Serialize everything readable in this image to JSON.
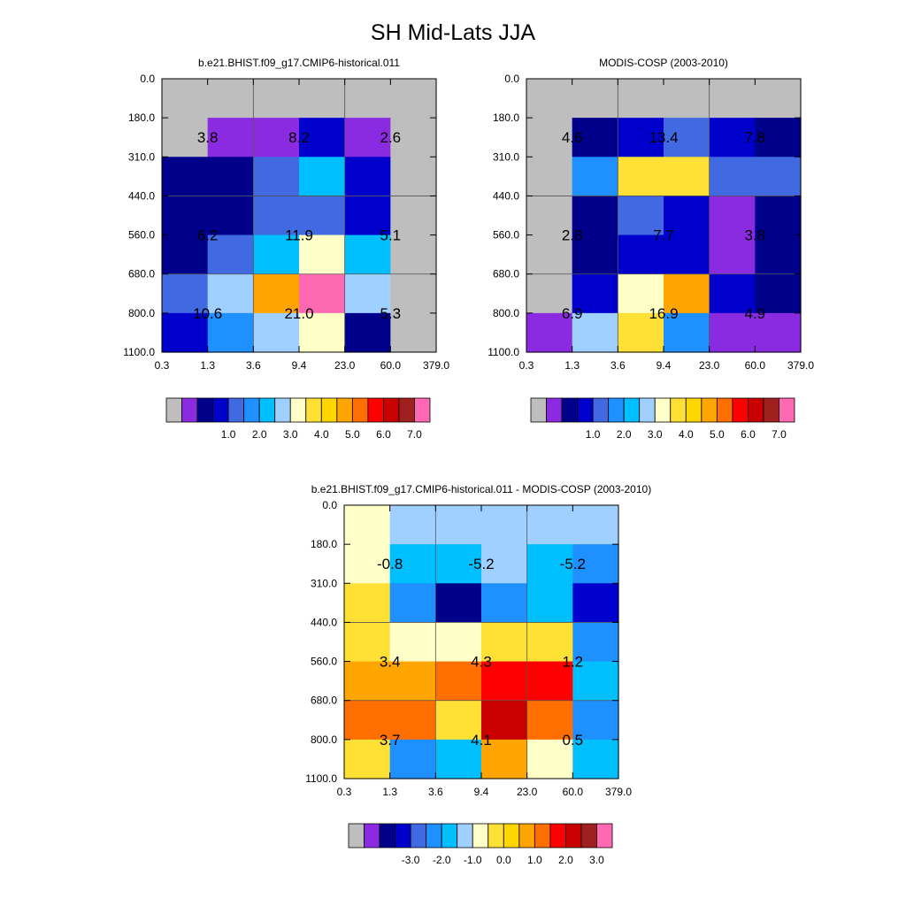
{
  "figure": {
    "title": "SH Mid-Lats JJA"
  },
  "palette_main": [
    "#BEBEBE",
    "#8A2BE2",
    "#00008B",
    "#0000CD",
    "#4169E1",
    "#1E90FF",
    "#00BFFF",
    "#A0D0FF",
    "#FFFFC8",
    "#FFE135",
    "#FFD700",
    "#FFA500",
    "#FF6E00",
    "#FF0000",
    "#C80000",
    "#A02020",
    "#FF69B4"
  ],
  "palette_diff": [
    "#BEBEBE",
    "#8A2BE2",
    "#00008B",
    "#0000CD",
    "#4169E1",
    "#1E90FF",
    "#00BFFF",
    "#A0D0FF",
    "#FFFFC8",
    "#FFE135",
    "#FFD700",
    "#FFA500",
    "#FF6E00",
    "#FF0000",
    "#C80000",
    "#A02020",
    "#FF69B4"
  ],
  "chart_data": [
    {
      "type": "heatmap",
      "title": "b.e21.BHIST.f09_g17.CMIP6-historical.011",
      "x_ticks": [
        "0.3",
        "1.3",
        "3.6",
        "9.4",
        "23.0",
        "60.0",
        "379.0"
      ],
      "y_ticks": [
        "0.0",
        "180.0",
        "310.0",
        "440.0",
        "560.0",
        "680.0",
        "800.0",
        "1100.0"
      ],
      "cells": [
        [
          0,
          0,
          0,
          0,
          0,
          0
        ],
        [
          0,
          1,
          1,
          3,
          1,
          0
        ],
        [
          2,
          2,
          4,
          6,
          3,
          0
        ],
        [
          2,
          2,
          4,
          4,
          3,
          0
        ],
        [
          2,
          4,
          6,
          8,
          6,
          0
        ],
        [
          4,
          7,
          11,
          16,
          7,
          0
        ],
        [
          3,
          5,
          7,
          8,
          2,
          0
        ]
      ],
      "labels": [
        {
          "text": "3.8",
          "col": 1,
          "row": 1.5
        },
        {
          "text": "8.2",
          "col": 3,
          "row": 1.5
        },
        {
          "text": "2.6",
          "col": 5,
          "row": 1.5
        },
        {
          "text": "6.2",
          "col": 1,
          "row": 4
        },
        {
          "text": "11.9",
          "col": 3,
          "row": 4
        },
        {
          "text": "5.1",
          "col": 5,
          "row": 4
        },
        {
          "text": "10.6",
          "col": 1,
          "row": 6
        },
        {
          "text": "21.0",
          "col": 3,
          "row": 6
        },
        {
          "text": "5.3",
          "col": 5,
          "row": 6
        }
      ],
      "colorbar_labels": [
        "1.0",
        "2.0",
        "3.0",
        "4.0",
        "5.0",
        "6.0",
        "7.0"
      ]
    },
    {
      "type": "heatmap",
      "title": "MODIS-COSP (2003-2010)",
      "x_ticks": [
        "0.3",
        "1.3",
        "3.6",
        "9.4",
        "23.0",
        "60.0",
        "379.0"
      ],
      "y_ticks": [
        "0.0",
        "180.0",
        "310.0",
        "440.0",
        "560.0",
        "680.0",
        "800.0",
        "1100.0"
      ],
      "cells": [
        [
          0,
          0,
          0,
          0,
          0,
          0
        ],
        [
          0,
          2,
          3,
          4,
          3,
          2
        ],
        [
          0,
          5,
          9,
          9,
          4,
          4
        ],
        [
          0,
          2,
          4,
          3,
          1,
          2
        ],
        [
          0,
          2,
          3,
          3,
          1,
          2
        ],
        [
          0,
          3,
          8,
          11,
          3,
          2
        ],
        [
          1,
          7,
          9,
          5,
          1,
          1
        ]
      ],
      "labels": [
        {
          "text": "4.6",
          "col": 1,
          "row": 1.5
        },
        {
          "text": "13.4",
          "col": 3,
          "row": 1.5
        },
        {
          "text": "7.8",
          "col": 5,
          "row": 1.5
        },
        {
          "text": "2.8",
          "col": 1,
          "row": 4
        },
        {
          "text": "7.7",
          "col": 3,
          "row": 4
        },
        {
          "text": "3.8",
          "col": 5,
          "row": 4
        },
        {
          "text": "6.9",
          "col": 1,
          "row": 6
        },
        {
          "text": "16.9",
          "col": 3,
          "row": 6
        },
        {
          "text": "4.9",
          "col": 5,
          "row": 6
        }
      ],
      "colorbar_labels": [
        "1.0",
        "2.0",
        "3.0",
        "4.0",
        "5.0",
        "6.0",
        "7.0"
      ]
    },
    {
      "type": "heatmap",
      "title": "b.e21.BHIST.f09_g17.CMIP6-historical.011 - MODIS-COSP (2003-2010)",
      "x_ticks": [
        "0.3",
        "1.3",
        "3.6",
        "9.4",
        "23.0",
        "60.0",
        "379.0"
      ],
      "y_ticks": [
        "0.0",
        "180.0",
        "310.0",
        "440.0",
        "560.0",
        "680.0",
        "800.0",
        "1100.0"
      ],
      "cells": [
        [
          8,
          7,
          7,
          7,
          7,
          7
        ],
        [
          8,
          6,
          6,
          7,
          6,
          5
        ],
        [
          9,
          5,
          2,
          5,
          6,
          3
        ],
        [
          9,
          8,
          8,
          9,
          9,
          5
        ],
        [
          11,
          11,
          12,
          13,
          13,
          6
        ],
        [
          12,
          12,
          9,
          14,
          12,
          5
        ],
        [
          9,
          5,
          6,
          11,
          8,
          6
        ]
      ],
      "labels": [
        {
          "text": "-0.8",
          "col": 1,
          "row": 1.5
        },
        {
          "text": "-5.2",
          "col": 3,
          "row": 1.5
        },
        {
          "text": "-5.2",
          "col": 5,
          "row": 1.5
        },
        {
          "text": "3.4",
          "col": 1,
          "row": 4
        },
        {
          "text": "4.3",
          "col": 3,
          "row": 4
        },
        {
          "text": "1.2",
          "col": 5,
          "row": 4
        },
        {
          "text": "3.7",
          "col": 1,
          "row": 6
        },
        {
          "text": "4.1",
          "col": 3,
          "row": 6
        },
        {
          "text": "0.5",
          "col": 5,
          "row": 6
        }
      ],
      "colorbar_labels": [
        "-3.0",
        "-2.0",
        "-1.0",
        "0.0",
        "1.0",
        "2.0",
        "3.0"
      ]
    }
  ]
}
